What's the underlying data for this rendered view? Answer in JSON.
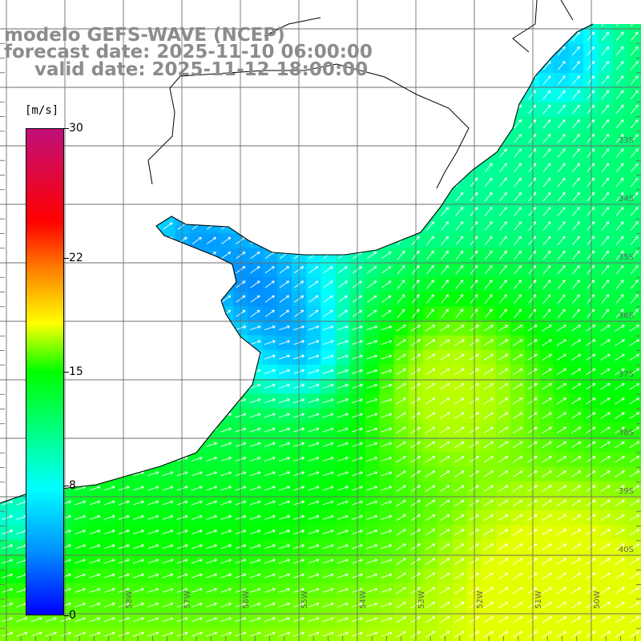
{
  "title": {
    "line1": "modelo GEFS-WAVE (NCEP)",
    "line2": "forecast date: 2025-11-10 06:00:00",
    "line3": "valid date: 2025-11-12 18:00:00"
  },
  "colorbar": {
    "units": "[m/s]",
    "ticks": [
      {
        "label": "30",
        "value": 30
      },
      {
        "label": "22",
        "value": 22
      },
      {
        "label": "15",
        "value": 15
      },
      {
        "label": "8",
        "value": 8
      },
      {
        "label": "0",
        "value": 0
      }
    ],
    "colors": [
      "#0000ff",
      "#0090ff",
      "#00ffff",
      "#00ff00",
      "#ffff00",
      "#ff8000",
      "#ff0000",
      "#c0107a"
    ]
  },
  "map": {
    "lat_labels": [
      "33S",
      "34S",
      "35S",
      "36S",
      "37S",
      "38S",
      "39S",
      "40S"
    ],
    "lon_labels": [
      "58W",
      "57W",
      "56W",
      "55W",
      "54W",
      "53W",
      "52W",
      "51W",
      "50W"
    ],
    "land_color": "#ffffff",
    "grid_color": "#6e6e6e",
    "arrow_color": "#ffffff"
  }
}
